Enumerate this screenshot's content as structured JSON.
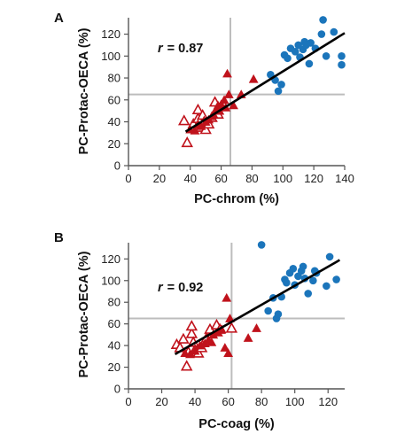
{
  "chart_data": [
    {
      "type": "scatter",
      "panel_label": "A",
      "xlabel": "PC-chrom (%)",
      "ylabel": "PC-Protac-OECA (%)",
      "xlim": [
        0,
        140
      ],
      "ylim": [
        0,
        135
      ],
      "xticks": [
        "0",
        "20",
        "40",
        "60",
        "80",
        "100",
        "120",
        "140"
      ],
      "yticks": [
        "0",
        "20",
        "40",
        "60",
        "80",
        "100",
        "120"
      ],
      "annotation_r": "r",
      "annotation_value": "= 0.87",
      "reference_lines": {
        "x": 66,
        "y": 65
      },
      "regression": {
        "x": [
          37,
          140
        ],
        "y": [
          31,
          121
        ]
      },
      "series": [
        {
          "marker": "open-triangle",
          "color": "#c0121b",
          "points": [
            [
              36,
              41
            ],
            [
              38,
              21
            ],
            [
              42,
              38
            ],
            [
              45,
              43
            ],
            [
              45,
              51
            ],
            [
              47,
              35
            ],
            [
              48,
              46
            ],
            [
              49,
              40
            ],
            [
              50,
              33
            ],
            [
              52,
              38
            ],
            [
              54,
              44
            ],
            [
              56,
              58
            ],
            [
              58,
              47
            ]
          ]
        },
        {
          "marker": "filled-triangle",
          "color": "#c0121b",
          "points": [
            [
              40,
              33
            ],
            [
              43,
              32
            ],
            [
              45,
              38
            ],
            [
              47,
              36
            ],
            [
              50,
              40
            ],
            [
              52,
              42
            ],
            [
              54,
              45
            ],
            [
              55,
              47
            ],
            [
              57,
              52
            ],
            [
              58,
              55
            ],
            [
              59,
              50
            ],
            [
              60,
              56
            ],
            [
              62,
              60
            ],
            [
              63,
              53
            ],
            [
              64,
              84
            ],
            [
              65,
              65
            ],
            [
              68,
              55
            ],
            [
              73,
              65
            ],
            [
              81,
              79
            ]
          ]
        },
        {
          "marker": "circle",
          "color": "#1b75bb",
          "points": [
            [
              92,
              83
            ],
            [
              95,
              78
            ],
            [
              97,
              68
            ],
            [
              99,
              74
            ],
            [
              101,
              101
            ],
            [
              103,
              98
            ],
            [
              105,
              107
            ],
            [
              108,
              104
            ],
            [
              110,
              110
            ],
            [
              111,
              99
            ],
            [
              113,
              106
            ],
            [
              114,
              113
            ],
            [
              115,
              110
            ],
            [
              117,
              93
            ],
            [
              118,
              112
            ],
            [
              121,
              107
            ],
            [
              125,
              120
            ],
            [
              126,
              133
            ],
            [
              128,
              100
            ],
            [
              133,
              122
            ],
            [
              138,
              92
            ],
            [
              138,
              100
            ]
          ]
        }
      ]
    },
    {
      "type": "scatter",
      "panel_label": "B",
      "xlabel": "PC-coag (%)",
      "ylabel": "PC-Protac-OECA (%)",
      "xlim": [
        0,
        130
      ],
      "ylim": [
        0,
        135
      ],
      "xticks": [
        "0",
        "20",
        "40",
        "60",
        "80",
        "100",
        "120"
      ],
      "yticks": [
        "0",
        "20",
        "40",
        "60",
        "80",
        "100",
        "120"
      ],
      "annotation_r": "r",
      "annotation_value": "= 0.92",
      "reference_lines": {
        "x": 62,
        "y": 65
      },
      "regression": {
        "x": [
          28,
          127
        ],
        "y": [
          32,
          119
        ]
      },
      "series": [
        {
          "marker": "open-triangle",
          "color": "#c0121b",
          "points": [
            [
              29,
              41
            ],
            [
              31,
              38
            ],
            [
              33,
              46
            ],
            [
              35,
              21
            ],
            [
              36,
              34
            ],
            [
              38,
              51
            ],
            [
              38,
              58
            ],
            [
              39,
              43
            ],
            [
              40,
              36
            ],
            [
              42,
              33
            ],
            [
              44,
              38
            ],
            [
              47,
              47
            ],
            [
              49,
              55
            ],
            [
              53,
              59
            ],
            [
              55,
              55
            ],
            [
              62,
              56
            ]
          ]
        },
        {
          "marker": "filled-triangle",
          "color": "#c0121b",
          "points": [
            [
              34,
              33
            ],
            [
              37,
              32
            ],
            [
              40,
              35
            ],
            [
              43,
              40
            ],
            [
              46,
              42
            ],
            [
              48,
              45
            ],
            [
              50,
              43
            ],
            [
              51,
              50
            ],
            [
              54,
              52
            ],
            [
              56,
              55
            ],
            [
              58,
              38
            ],
            [
              59,
              84
            ],
            [
              60,
              33
            ],
            [
              61,
              65
            ],
            [
              72,
              47
            ],
            [
              77,
              56
            ]
          ]
        },
        {
          "marker": "circle",
          "color": "#1b75bb",
          "points": [
            [
              80,
              133
            ],
            [
              84,
              72
            ],
            [
              87,
              84
            ],
            [
              89,
              65
            ],
            [
              90,
              69
            ],
            [
              92,
              85
            ],
            [
              94,
              101
            ],
            [
              95,
              98
            ],
            [
              97,
              107
            ],
            [
              99,
              111
            ],
            [
              100,
              96
            ],
            [
              102,
              104
            ],
            [
              104,
              109
            ],
            [
              105,
              113
            ],
            [
              106,
              102
            ],
            [
              108,
              88
            ],
            [
              111,
              100
            ],
            [
              112,
              109
            ],
            [
              113,
              107
            ],
            [
              119,
              95
            ],
            [
              121,
              122
            ],
            [
              125,
              101
            ]
          ]
        }
      ]
    }
  ]
}
